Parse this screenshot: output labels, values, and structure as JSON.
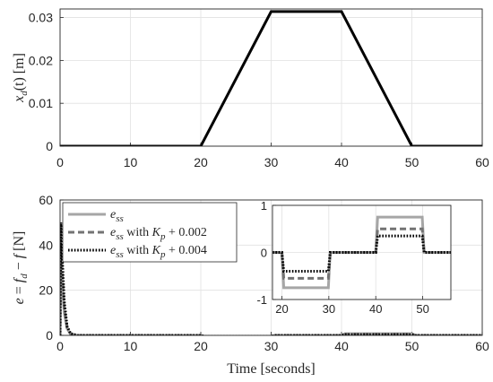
{
  "chart_data": [
    {
      "type": "line",
      "title": "",
      "ylabel_main": "x",
      "ylabel_sub": "d",
      "ylabel_tail": "(t) [m]",
      "xlabel": "",
      "xlim": [
        0,
        60
      ],
      "ylim": [
        0,
        0.032
      ],
      "xticks": [
        "0",
        "10",
        "20",
        "30",
        "40",
        "50",
        "60"
      ],
      "yticks": [
        "0",
        "0.01",
        "0.02",
        "0.03"
      ],
      "grid": true,
      "series": [
        {
          "color": "#000000",
          "style": "solid",
          "x": [
            0,
            20,
            30,
            40,
            50,
            60
          ],
          "y": [
            0,
            0,
            0.0314,
            0.0314,
            0,
            0
          ]
        }
      ]
    },
    {
      "type": "line",
      "title": "",
      "ylabel_parts": [
        "e",
        " = ",
        "f",
        "d",
        " − ",
        "f",
        " [N]"
      ],
      "xlabel": "Time [seconds]",
      "xlim": [
        0,
        60
      ],
      "ylim": [
        0,
        60
      ],
      "xticks": [
        "0",
        "10",
        "20",
        "30",
        "40",
        "50",
        "60"
      ],
      "yticks": [
        "0",
        "20",
        "40",
        "60"
      ],
      "grid": true,
      "legend_position": "top-left",
      "legend": [
        {
          "main": "e",
          "sub": "ss",
          "suffix": "",
          "color": "#a6a6a6",
          "style": "solid"
        },
        {
          "main": "e",
          "sub": "ss",
          "suffix": " with ",
          "k_main": "K",
          "k_sub": "p",
          "k_tail": " + 0.002",
          "color": "#737373",
          "style": "dashed"
        },
        {
          "main": "e",
          "sub": "ss",
          "suffix": " with ",
          "k_main": "K",
          "k_sub": "p",
          "k_tail": " + 0.004",
          "color": "#000000",
          "style": "dotted"
        }
      ],
      "series": [
        {
          "color": "#a6a6a6",
          "style": "solid",
          "x": [
            0,
            0.1,
            0.3,
            0.6,
            1.0,
            1.5,
            2.5,
            20,
            20.5,
            30,
            30.5,
            40,
            40.5,
            50,
            50.5,
            60
          ],
          "y": [
            0,
            30,
            22,
            10,
            3,
            0.5,
            0,
            0,
            -0.75,
            -0.75,
            0,
            0,
            0.75,
            0.75,
            0,
            0
          ]
        },
        {
          "color": "#737373",
          "style": "dashed",
          "x": [
            0,
            0.1,
            0.3,
            0.6,
            1.0,
            1.5,
            2.5,
            20,
            20.5,
            30,
            30.5,
            40,
            40.5,
            50,
            50.5,
            60
          ],
          "y": [
            0,
            40,
            28,
            12,
            3.5,
            0.6,
            0,
            0,
            -0.55,
            -0.55,
            0,
            0,
            0.5,
            0.5,
            0,
            0
          ]
        },
        {
          "color": "#000000",
          "style": "dotted",
          "x": [
            0,
            0.1,
            0.3,
            0.6,
            1.0,
            1.5,
            2.5,
            20,
            20.5,
            30,
            30.5,
            40,
            40.5,
            50,
            50.5,
            60
          ],
          "y": [
            0,
            50,
            35,
            15,
            4,
            0.8,
            0,
            0,
            -0.4,
            -0.4,
            0,
            0,
            0.35,
            0.35,
            0,
            0
          ]
        }
      ],
      "inset": {
        "xlim": [
          18,
          56
        ],
        "ylim": [
          -1,
          1
        ],
        "xticks": [
          "20",
          "30",
          "40",
          "50"
        ],
        "yticks": [
          "-1",
          "0",
          "1"
        ],
        "grid": true,
        "series": [
          {
            "color": "#a6a6a6",
            "style": "solid",
            "x": [
              18,
              20,
              20.4,
              29.9,
              30.3,
              40,
              40.4,
              49.9,
              50.3,
              56
            ],
            "y": [
              0,
              0,
              -0.75,
              -0.75,
              0,
              0,
              0.75,
              0.75,
              0,
              0
            ]
          },
          {
            "color": "#737373",
            "style": "dashed",
            "x": [
              18,
              20,
              20.4,
              29.9,
              30.3,
              40,
              40.4,
              49.9,
              50.3,
              56
            ],
            "y": [
              0,
              0,
              -0.55,
              -0.55,
              0,
              0,
              0.5,
              0.5,
              0,
              0
            ]
          },
          {
            "color": "#000000",
            "style": "dotted",
            "x": [
              18,
              20,
              20.4,
              29.9,
              30.3,
              40,
              40.4,
              49.9,
              50.3,
              56
            ],
            "y": [
              0,
              0,
              -0.4,
              -0.4,
              0,
              0,
              0.35,
              0.35,
              0,
              0
            ]
          }
        ]
      }
    }
  ]
}
